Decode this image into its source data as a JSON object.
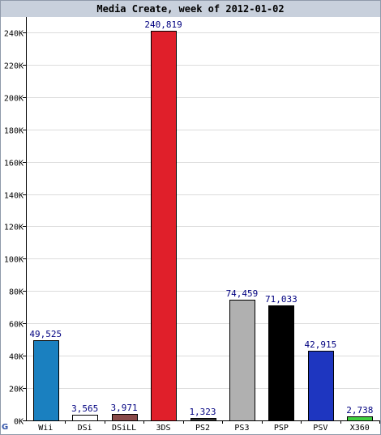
{
  "chart_data": {
    "type": "bar",
    "title": "Media Create, week of 2012-01-02",
    "categories": [
      "Wii",
      "DSi",
      "DSiLL",
      "3DS",
      "PS2",
      "PS3",
      "PSP",
      "PSV",
      "X360"
    ],
    "values": [
      49525,
      3565,
      3971,
      240819,
      1323,
      74459,
      71033,
      42915,
      2738
    ],
    "value_labels": [
      "49,525",
      "3,565",
      "3,971",
      "240,819",
      "1,323",
      "74,459",
      "71,033",
      "42,915",
      "2,738"
    ],
    "colors": [
      "#1a80c0",
      "#ffffff",
      "#8a4a4a",
      "#e01f2a",
      "#333333",
      "#b0b0b0",
      "#000000",
      "#1e36c0",
      "#40d040"
    ],
    "ylim": [
      0,
      250000
    ],
    "y_ticks": [
      0,
      20000,
      40000,
      60000,
      80000,
      100000,
      120000,
      140000,
      160000,
      180000,
      200000,
      220000,
      240000
    ],
    "y_tick_labels": [
      "0K",
      "20K",
      "40K",
      "60K",
      "80K",
      "100K",
      "120K",
      "140K",
      "160K",
      "180K",
      "200K",
      "220K",
      "240K"
    ],
    "grid": true,
    "value_label_color": "#000080"
  },
  "logo": {
    "text": "G"
  }
}
